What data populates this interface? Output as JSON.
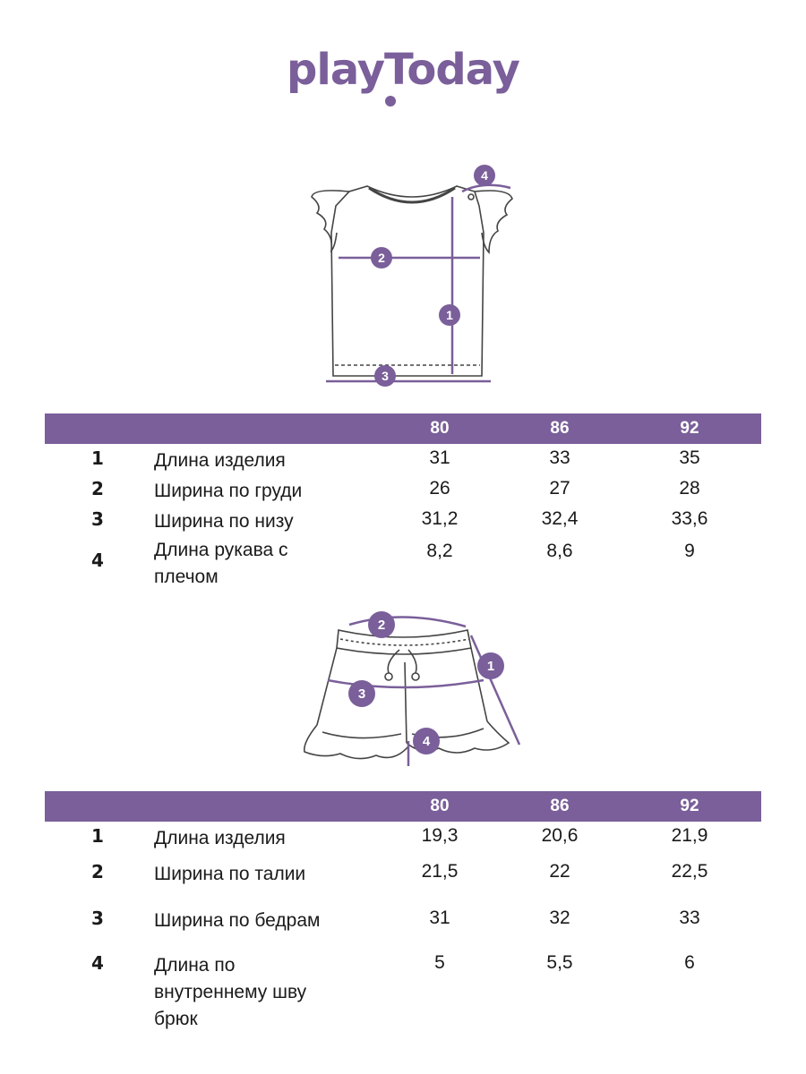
{
  "brand": {
    "logo_text": "playToday",
    "accent_color": "#7a5f9a"
  },
  "tshirt": {
    "markers": [
      "1",
      "2",
      "3",
      "4"
    ],
    "sizes": [
      "80",
      "86",
      "92"
    ],
    "rows": [
      {
        "num": "1",
        "label": "Длина изделия",
        "values": [
          "31",
          "33",
          "35"
        ]
      },
      {
        "num": "2",
        "label": "Ширина по груди",
        "values": [
          "26",
          "27",
          "28"
        ]
      },
      {
        "num": "3",
        "label": "Ширина по низу",
        "values": [
          "31,2",
          "32,4",
          "33,6"
        ]
      },
      {
        "num": "4",
        "label": "Длина рукава с плечом",
        "values": [
          "8,2",
          "8,6",
          "9"
        ]
      }
    ]
  },
  "shorts": {
    "markers": [
      "1",
      "2",
      "3",
      "4"
    ],
    "sizes": [
      "80",
      "86",
      "92"
    ],
    "rows": [
      {
        "num": "1",
        "label": "Длина изделия",
        "values": [
          "19,3",
          "20,6",
          "21,9"
        ]
      },
      {
        "num": "2",
        "label": "Ширина по талии",
        "values": [
          "21,5",
          "22",
          "22,5"
        ]
      },
      {
        "num": "3",
        "label": "Ширина по бедрам",
        "values": [
          "31",
          "32",
          "33"
        ]
      },
      {
        "num": "4",
        "label": "Длина по внутреннему шву брюк",
        "values": [
          "5",
          "5,5",
          "6"
        ]
      }
    ]
  }
}
